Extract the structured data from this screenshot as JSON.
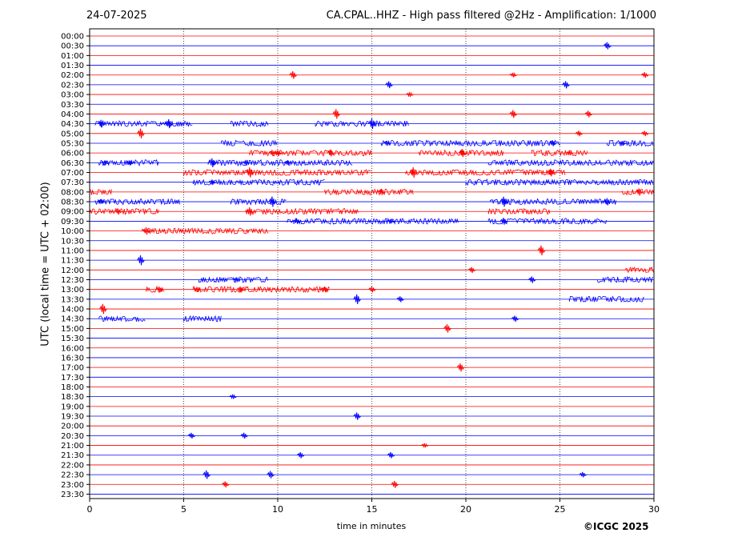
{
  "header": {
    "date": "24-07-2025",
    "station_title": "CA.CPAL..HHZ - High pass filtered @2Hz - Amplification: 1/1000"
  },
  "footer": {
    "copyright": "©ICGC 2025"
  },
  "colors": {
    "trace_a": "#ff0000",
    "trace_b": "#0000ff",
    "grid": "#000000"
  },
  "chart_data": {
    "type": "line",
    "title": "CA.CPAL..HHZ - High pass filtered @2Hz - Amplification: 1/1000",
    "xlabel": "time in minutes",
    "ylabel": "UTC (local time = UTC + 02:00)",
    "xlim": [
      0,
      30
    ],
    "x_ticks": [
      "0",
      "5",
      "10",
      "15",
      "20",
      "25",
      "30"
    ],
    "x_tick_values": [
      0,
      5,
      10,
      15,
      20,
      25,
      30
    ],
    "grid": "vertical dotted at 5-minute intervals",
    "row_colors_alternate": [
      "red",
      "blue"
    ],
    "rows": [
      {
        "label": "00:00",
        "color": "red",
        "activity": [],
        "spikes": []
      },
      {
        "label": "00:30",
        "color": "blue",
        "activity": [],
        "spikes": [
          27.5
        ]
      },
      {
        "label": "01:00",
        "color": "red",
        "activity": [],
        "spikes": []
      },
      {
        "label": "01:30",
        "color": "blue",
        "activity": [],
        "spikes": []
      },
      {
        "label": "02:00",
        "color": "red",
        "activity": [],
        "spikes": [
          10.8,
          22.5,
          29.5
        ]
      },
      {
        "label": "02:30",
        "color": "blue",
        "activity": [],
        "spikes": [
          15.9,
          25.3
        ]
      },
      {
        "label": "03:00",
        "color": "red",
        "activity": [],
        "spikes": [
          17.0
        ]
      },
      {
        "label": "03:30",
        "color": "blue",
        "activity": [],
        "spikes": []
      },
      {
        "label": "04:00",
        "color": "red",
        "activity": [],
        "spikes": [
          13.1,
          22.5,
          26.5
        ]
      },
      {
        "label": "04:30",
        "color": "blue",
        "activity": [
          [
            0.3,
            5.5
          ],
          [
            7.5,
            9.5
          ],
          [
            12.0,
            17.0
          ]
        ],
        "spikes": [
          0.6,
          4.2,
          15.0
        ]
      },
      {
        "label": "05:00",
        "color": "red",
        "activity": [],
        "spikes": [
          2.7,
          26.0,
          29.5
        ]
      },
      {
        "label": "05:30",
        "color": "blue",
        "activity": [
          [
            7.0,
            10.0
          ],
          [
            15.5,
            25.0
          ],
          [
            27.5,
            30.0
          ]
        ],
        "spikes": [
          15.8,
          24.6,
          28.3
        ]
      },
      {
        "label": "06:00",
        "color": "red",
        "activity": [
          [
            8.5,
            15.0
          ],
          [
            17.5,
            22.0
          ],
          [
            23.5,
            26.5
          ]
        ],
        "spikes": [
          9.7,
          10.0,
          12.8,
          19.8,
          25.5
        ]
      },
      {
        "label": "06:30",
        "color": "blue",
        "activity": [
          [
            0.5,
            3.7
          ],
          [
            6.3,
            14.0
          ],
          [
            21.2,
            30.0
          ]
        ],
        "spikes": [
          0.8,
          2.1,
          6.5,
          8.3,
          10.5
        ]
      },
      {
        "label": "07:00",
        "color": "red",
        "activity": [
          [
            5.0,
            15.0
          ],
          [
            16.8,
            25.3
          ]
        ],
        "spikes": [
          8.5,
          17.2,
          24.5
        ]
      },
      {
        "label": "07:30",
        "color": "blue",
        "activity": [
          [
            5.5,
            12.5
          ],
          [
            20.0,
            30.0
          ]
        ],
        "spikes": [
          6.5
        ]
      },
      {
        "label": "08:00",
        "color": "red",
        "activity": [
          [
            0.0,
            1.2
          ],
          [
            12.5,
            17.2
          ],
          [
            28.3,
            30.0
          ]
        ],
        "spikes": [
          15.5,
          29.2
        ]
      },
      {
        "label": "08:30",
        "color": "blue",
        "activity": [
          [
            0.3,
            4.8
          ],
          [
            7.5,
            10.5
          ],
          [
            21.3,
            28.0
          ]
        ],
        "spikes": [
          0.6,
          9.7,
          22.0,
          27.5
        ]
      },
      {
        "label": "09:00",
        "color": "red",
        "activity": [
          [
            0.0,
            3.7
          ],
          [
            8.3,
            14.3
          ],
          [
            21.2,
            24.5
          ]
        ],
        "spikes": [
          1.5,
          8.5
        ]
      },
      {
        "label": "09:30",
        "color": "blue",
        "activity": [
          [
            10.5,
            19.6
          ],
          [
            21.2,
            27.5
          ]
        ],
        "spikes": [
          11.0,
          16.0,
          22.0
        ]
      },
      {
        "label": "10:00",
        "color": "red",
        "activity": [
          [
            2.8,
            9.5
          ]
        ],
        "spikes": [
          3.0
        ]
      },
      {
        "label": "10:30",
        "color": "blue",
        "activity": [],
        "spikes": []
      },
      {
        "label": "11:00",
        "color": "red",
        "activity": [],
        "spikes": [
          24.0
        ]
      },
      {
        "label": "11:30",
        "color": "blue",
        "activity": [],
        "spikes": [
          2.7
        ]
      },
      {
        "label": "12:00",
        "color": "red",
        "activity": [
          [
            28.5,
            30.0
          ]
        ],
        "spikes": [
          20.3
        ]
      },
      {
        "label": "12:30",
        "color": "blue",
        "activity": [
          [
            5.8,
            9.5
          ],
          [
            27.0,
            30.0
          ]
        ],
        "spikes": [
          7.8,
          23.5
        ]
      },
      {
        "label": "13:00",
        "color": "red",
        "activity": [
          [
            3.0,
            4.0
          ],
          [
            5.5,
            12.8
          ]
        ],
        "spikes": [
          3.7,
          5.7,
          8.0,
          12.5,
          15.0
        ]
      },
      {
        "label": "13:30",
        "color": "blue",
        "activity": [
          [
            25.5,
            29.5
          ]
        ],
        "spikes": [
          14.2,
          16.5
        ]
      },
      {
        "label": "14:00",
        "color": "red",
        "activity": [],
        "spikes": [
          0.7
        ]
      },
      {
        "label": "14:30",
        "color": "blue",
        "activity": [
          [
            0.5,
            3.0
          ],
          [
            5.0,
            7.0
          ]
        ],
        "spikes": [
          22.6
        ]
      },
      {
        "label": "15:00",
        "color": "red",
        "activity": [],
        "spikes": [
          19.0
        ]
      },
      {
        "label": "15:30",
        "color": "blue",
        "activity": [],
        "spikes": []
      },
      {
        "label": "16:00",
        "color": "red",
        "activity": [],
        "spikes": []
      },
      {
        "label": "16:30",
        "color": "blue",
        "activity": [],
        "spikes": []
      },
      {
        "label": "17:00",
        "color": "red",
        "activity": [],
        "spikes": [
          19.7
        ]
      },
      {
        "label": "17:30",
        "color": "blue",
        "activity": [],
        "spikes": []
      },
      {
        "label": "18:00",
        "color": "red",
        "activity": [],
        "spikes": []
      },
      {
        "label": "18:30",
        "color": "blue",
        "activity": [],
        "spikes": [
          7.6
        ]
      },
      {
        "label": "19:00",
        "color": "red",
        "activity": [],
        "spikes": []
      },
      {
        "label": "19:30",
        "color": "blue",
        "activity": [],
        "spikes": [
          14.2
        ]
      },
      {
        "label": "20:00",
        "color": "red",
        "activity": [],
        "spikes": []
      },
      {
        "label": "20:30",
        "color": "blue",
        "activity": [],
        "spikes": [
          8.2,
          5.4
        ]
      },
      {
        "label": "21:00",
        "color": "red",
        "activity": [],
        "spikes": [
          17.8
        ]
      },
      {
        "label": "21:30",
        "color": "blue",
        "activity": [],
        "spikes": [
          11.2,
          16.0
        ]
      },
      {
        "label": "22:00",
        "color": "red",
        "activity": [],
        "spikes": []
      },
      {
        "label": "22:30",
        "color": "blue",
        "activity": [],
        "spikes": [
          9.6,
          26.2,
          6.2
        ]
      },
      {
        "label": "23:00",
        "color": "red",
        "activity": [],
        "spikes": [
          16.2,
          7.2
        ]
      },
      {
        "label": "23:30",
        "color": "blue",
        "activity": [],
        "spikes": []
      }
    ]
  }
}
